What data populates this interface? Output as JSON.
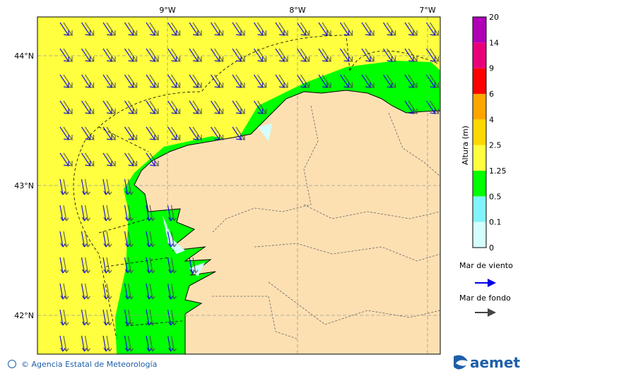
{
  "map": {
    "lon_labels": [
      "9°W",
      "8°W",
      "7°W"
    ],
    "lat_labels": [
      "44°N",
      "43°N",
      "42°N"
    ],
    "sea_color": "#ffff40",
    "land_color": "#fde0b2",
    "coast_band_color": "#00ff00"
  },
  "colorbar": {
    "title": "Altura (m)",
    "labels": [
      "0",
      "0.1",
      "0.5",
      "1.25",
      "2.5",
      "4",
      "6",
      "9",
      "14",
      "20"
    ],
    "colors": [
      "#d4ffff",
      "#80f4ff",
      "#00ff00",
      "#ffff40",
      "#ffd700",
      "#ffa500",
      "#ff0000",
      "#e8007a",
      "#b000b8"
    ]
  },
  "legend": {
    "items": [
      {
        "label": "Mar de viento",
        "color": "#0000ee"
      },
      {
        "label": "Mar de fondo",
        "color": "#444444"
      }
    ]
  },
  "footer": {
    "copyright": "© Agencia Estatal de Meteorología",
    "logo": "aemet"
  }
}
